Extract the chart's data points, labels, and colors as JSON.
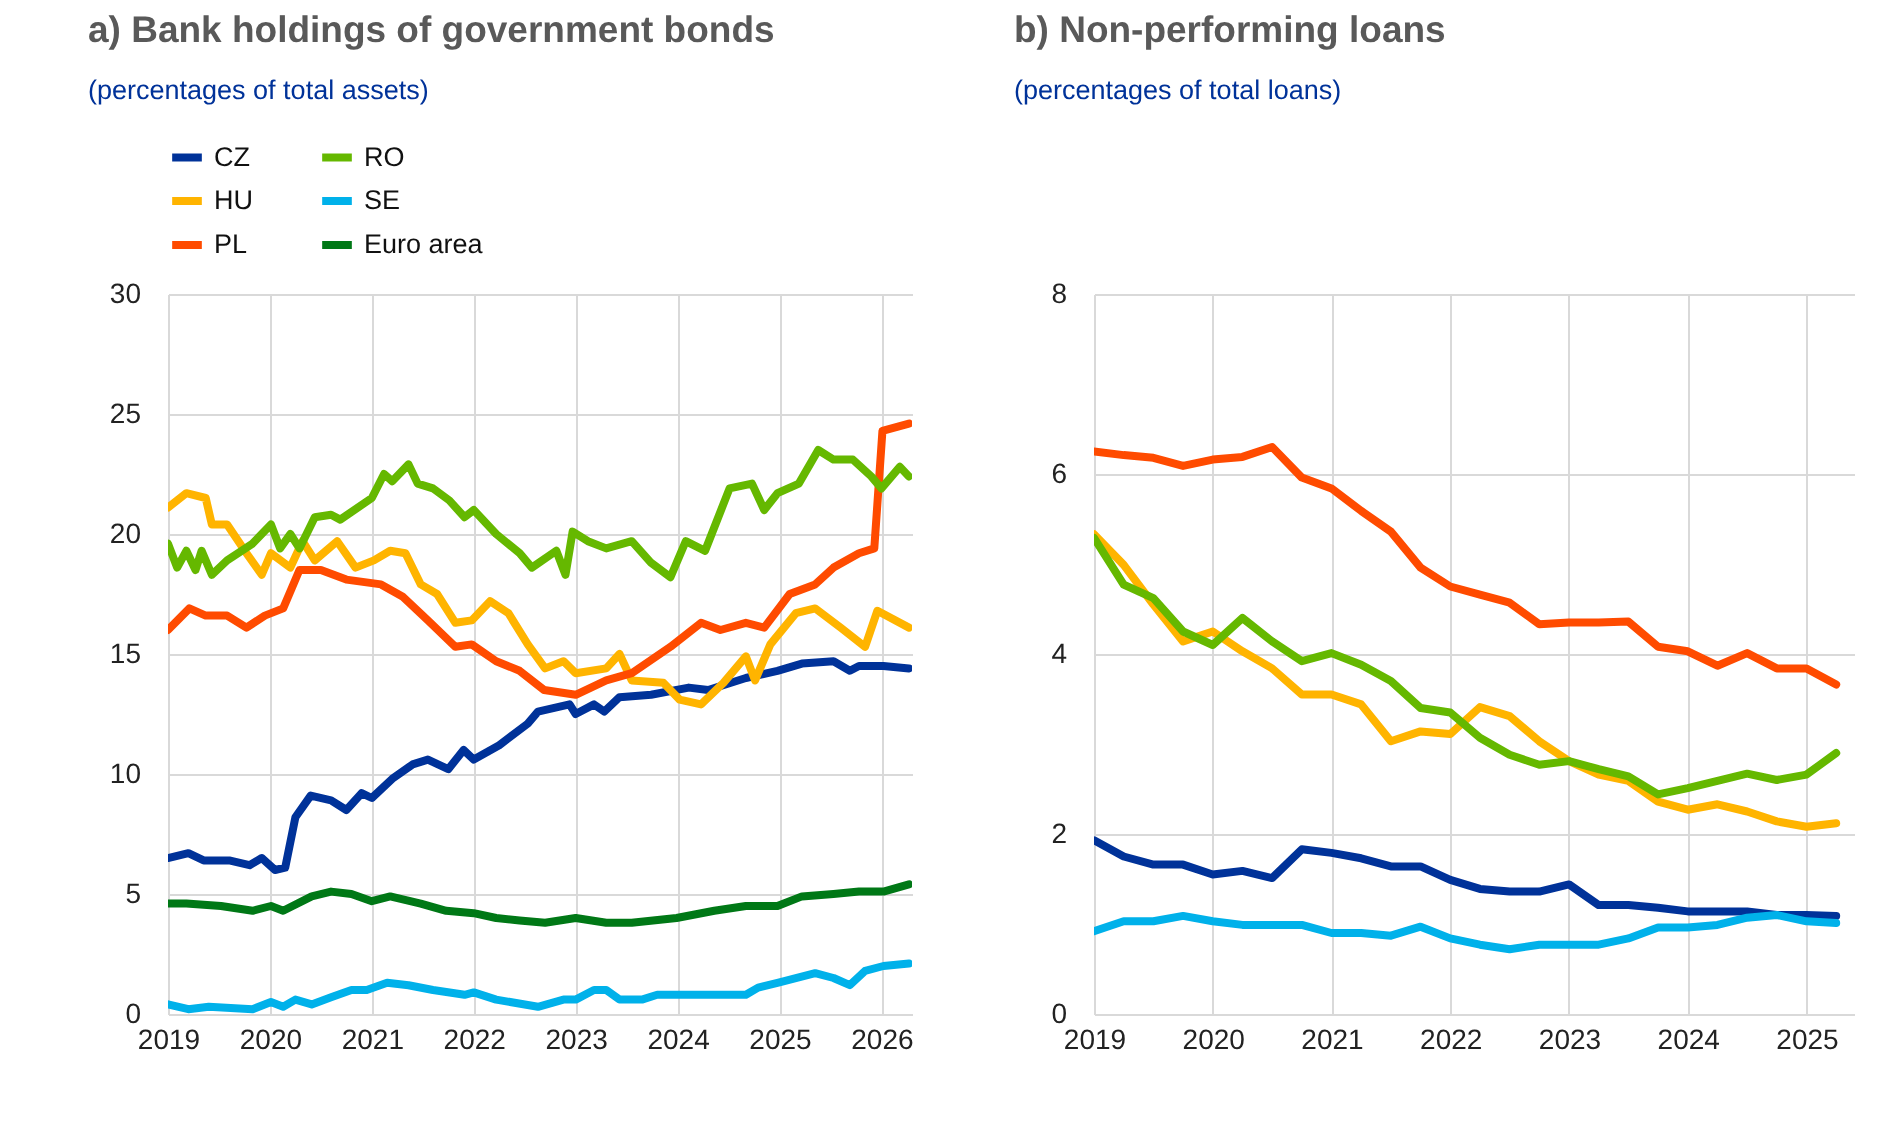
{
  "chart_data": [
    {
      "type": "line",
      "title": "a) Bank holdings of government bonds",
      "subtitle": "(percentages of total assets)",
      "xlim": [
        2019,
        2026.3
      ],
      "xticks": [
        2019,
        2020,
        2021,
        2022,
        2023,
        2024,
        2025,
        2026
      ],
      "ylim": [
        0,
        30
      ],
      "yticks": [
        0,
        5,
        10,
        15,
        20,
        25,
        30
      ],
      "grid": true,
      "legend": "top left",
      "line_style": "solid",
      "series": [
        {
          "name": "CZ",
          "color": "#003299",
          "x": [
            2019.0,
            2019.2,
            2019.35,
            2019.6,
            2019.8,
            2019.92,
            2020.05,
            2020.15,
            2020.25,
            2020.4,
            2020.6,
            2020.75,
            2020.9,
            2021.0,
            2021.2,
            2021.4,
            2021.55,
            2021.75,
            2021.9,
            2022.0,
            2022.25,
            2022.53,
            2022.63,
            2022.94,
            2023.0,
            2023.18,
            2023.28,
            2023.43,
            2023.74,
            2024.11,
            2024.3,
            2024.67,
            2024.98,
            2025.22,
            2025.53,
            2025.69,
            2025.78,
            2026.02,
            2026.27
          ],
          "values": [
            6.5,
            6.7,
            6.4,
            6.4,
            6.2,
            6.5,
            6.0,
            6.1,
            8.2,
            9.1,
            8.9,
            8.5,
            9.2,
            9.0,
            9.8,
            10.4,
            10.6,
            10.2,
            11.0,
            10.6,
            11.2,
            12.1,
            12.6,
            12.9,
            12.5,
            12.9,
            12.6,
            13.2,
            13.3,
            13.6,
            13.5,
            14.0,
            14.3,
            14.6,
            14.7,
            14.3,
            14.5,
            14.5,
            14.4
          ]
        },
        {
          "name": "HU",
          "color": "#ffb400",
          "x": [
            2019.0,
            2019.18,
            2019.37,
            2019.43,
            2019.58,
            2019.77,
            2019.92,
            2020.01,
            2020.2,
            2020.32,
            2020.44,
            2020.66,
            2020.84,
            2021.02,
            2021.18,
            2021.33,
            2021.48,
            2021.64,
            2021.82,
            2021.98,
            2022.16,
            2022.34,
            2022.53,
            2022.7,
            2022.88,
            2023.0,
            2023.3,
            2023.43,
            2023.55,
            2023.86,
            2024.02,
            2024.23,
            2024.45,
            2024.67,
            2024.76,
            2024.91,
            2025.16,
            2025.35,
            2025.6,
            2025.84,
            2025.96,
            2026.27
          ],
          "values": [
            21.1,
            21.7,
            21.5,
            20.4,
            20.4,
            19.2,
            18.3,
            19.2,
            18.6,
            19.7,
            18.9,
            19.7,
            18.6,
            18.9,
            19.3,
            19.2,
            17.9,
            17.5,
            16.3,
            16.4,
            17.2,
            16.7,
            15.4,
            14.4,
            14.7,
            14.2,
            14.4,
            15.0,
            13.9,
            13.8,
            13.1,
            12.9,
            13.8,
            14.9,
            13.9,
            15.4,
            16.7,
            16.9,
            16.1,
            15.3,
            16.8,
            16.1
          ]
        },
        {
          "name": "PL",
          "color": "#ff4b00",
          "x": [
            2019.0,
            2019.21,
            2019.37,
            2019.58,
            2019.77,
            2019.95,
            2020.13,
            2020.29,
            2020.5,
            2020.75,
            2021.09,
            2021.3,
            2021.55,
            2021.82,
            2021.98,
            2022.22,
            2022.45,
            2022.69,
            2023.0,
            2023.3,
            2023.55,
            2023.93,
            2024.23,
            2024.42,
            2024.67,
            2024.85,
            2025.1,
            2025.35,
            2025.53,
            2025.78,
            2025.93,
            2026.01,
            2026.27
          ],
          "values": [
            16.0,
            16.9,
            16.6,
            16.6,
            16.1,
            16.6,
            16.9,
            18.5,
            18.5,
            18.1,
            17.9,
            17.4,
            16.4,
            15.3,
            15.4,
            14.7,
            14.3,
            13.5,
            13.3,
            13.9,
            14.2,
            15.3,
            16.3,
            16.0,
            16.3,
            16.1,
            17.5,
            17.9,
            18.6,
            19.2,
            19.4,
            24.3,
            24.6
          ]
        },
        {
          "name": "RO",
          "color": "#65b800",
          "x": [
            2019.0,
            2019.09,
            2019.18,
            2019.27,
            2019.33,
            2019.43,
            2019.58,
            2019.83,
            2020.01,
            2020.1,
            2020.2,
            2020.29,
            2020.44,
            2020.6,
            2020.69,
            2021.0,
            2021.12,
            2021.2,
            2021.36,
            2021.45,
            2021.6,
            2021.76,
            2021.91,
            2022.0,
            2022.22,
            2022.45,
            2022.57,
            2022.81,
            2022.9,
            2022.97,
            2023.12,
            2023.3,
            2023.55,
            2023.74,
            2023.93,
            2024.08,
            2024.27,
            2024.51,
            2024.73,
            2024.85,
            2024.98,
            2025.19,
            2025.38,
            2025.53,
            2025.72,
            2025.9,
            2026.0,
            2026.18,
            2026.27
          ],
          "values": [
            19.6,
            18.6,
            19.3,
            18.5,
            19.3,
            18.3,
            18.9,
            19.6,
            20.4,
            19.4,
            20.0,
            19.4,
            20.7,
            20.8,
            20.6,
            21.5,
            22.5,
            22.2,
            22.9,
            22.1,
            21.9,
            21.4,
            20.7,
            21.0,
            20.0,
            19.2,
            18.6,
            19.3,
            18.3,
            20.1,
            19.7,
            19.4,
            19.7,
            18.8,
            18.2,
            19.7,
            19.3,
            21.9,
            22.1,
            21.0,
            21.7,
            22.1,
            23.5,
            23.1,
            23.1,
            22.4,
            21.9,
            22.8,
            22.4
          ]
        },
        {
          "name": "SE",
          "color": "#00b1ea",
          "x": [
            2019.0,
            2019.2,
            2019.4,
            2019.83,
            2020.01,
            2020.13,
            2020.25,
            2020.41,
            2020.6,
            2020.8,
            2020.95,
            2021.15,
            2021.36,
            2021.6,
            2021.91,
            2022.0,
            2022.22,
            2022.63,
            2022.88,
            2023.0,
            2023.18,
            2023.3,
            2023.43,
            2023.65,
            2023.8,
            2024.1,
            2024.67,
            2024.79,
            2024.98,
            2025.35,
            2025.53,
            2025.69,
            2025.84,
            2026.02,
            2026.27
          ],
          "values": [
            0.4,
            0.2,
            0.3,
            0.2,
            0.5,
            0.3,
            0.6,
            0.4,
            0.7,
            1.0,
            1.0,
            1.3,
            1.2,
            1.0,
            0.8,
            0.9,
            0.6,
            0.3,
            0.6,
            0.6,
            1.0,
            1.0,
            0.6,
            0.6,
            0.8,
            0.8,
            0.8,
            1.1,
            1.3,
            1.7,
            1.5,
            1.2,
            1.8,
            2.0,
            2.1
          ]
        },
        {
          "name": "Euro area",
          "color": "#007816",
          "x": [
            2019.0,
            2019.18,
            2019.52,
            2019.83,
            2020.01,
            2020.13,
            2020.41,
            2020.6,
            2020.8,
            2021.0,
            2021.18,
            2021.48,
            2021.73,
            2022.0,
            2022.22,
            2022.45,
            2022.7,
            2023.0,
            2023.3,
            2023.55,
            2023.99,
            2024.36,
            2024.67,
            2024.98,
            2025.22,
            2025.53,
            2025.78,
            2026.02,
            2026.27
          ],
          "values": [
            4.6,
            4.6,
            4.5,
            4.3,
            4.5,
            4.3,
            4.9,
            5.1,
            5.0,
            4.7,
            4.9,
            4.6,
            4.3,
            4.2,
            4.0,
            3.9,
            3.8,
            4.0,
            3.8,
            3.8,
            4.0,
            4.3,
            4.5,
            4.5,
            4.9,
            5.0,
            5.1,
            5.1,
            5.4
          ]
        }
      ]
    },
    {
      "type": "line",
      "title": "b) Non-performing loans",
      "subtitle": "(percentages of total loans)",
      "xlim": [
        2019,
        2025.4
      ],
      "xticks": [
        2019,
        2020,
        2021,
        2022,
        2023,
        2024,
        2025
      ],
      "ylim": [
        0,
        8
      ],
      "yticks": [
        0,
        2,
        4,
        6,
        8
      ],
      "grid": true,
      "legend": "top left",
      "line_style": "solid",
      "x": [
        2019.0,
        2019.25,
        2019.5,
        2019.75,
        2020.0,
        2020.25,
        2020.5,
        2020.75,
        2021.0,
        2021.25,
        2021.5,
        2021.75,
        2022.0,
        2022.25,
        2022.5,
        2022.75,
        2023.0,
        2023.25,
        2023.5,
        2023.75,
        2024.0,
        2024.25,
        2024.5,
        2024.75,
        2025.0,
        2025.25
      ],
      "series": [
        {
          "name": "CZ",
          "color": "#003299",
          "values": [
            1.93,
            1.75,
            1.66,
            1.66,
            1.55,
            1.59,
            1.51,
            1.83,
            1.79,
            1.73,
            1.64,
            1.64,
            1.49,
            1.39,
            1.36,
            1.36,
            1.44,
            1.21,
            1.21,
            1.18,
            1.14,
            1.14,
            1.14,
            1.1,
            1.1,
            1.09
          ]
        },
        {
          "name": "HU",
          "color": "#ffb400",
          "values": [
            5.33,
            4.99,
            4.55,
            4.14,
            4.25,
            4.03,
            3.84,
            3.55,
            3.55,
            3.44,
            3.03,
            3.14,
            3.11,
            3.41,
            3.31,
            3.03,
            2.81,
            2.66,
            2.59,
            2.36,
            2.27,
            2.33,
            2.25,
            2.14,
            2.08,
            2.12
          ]
        },
        {
          "name": "PL",
          "color": "#ff4b00",
          "values": [
            6.25,
            6.21,
            6.18,
            6.09,
            6.16,
            6.19,
            6.3,
            5.96,
            5.84,
            5.59,
            5.36,
            4.96,
            4.75,
            4.66,
            4.57,
            4.33,
            4.35,
            4.35,
            4.36,
            4.08,
            4.03,
            3.87,
            4.01,
            3.84,
            3.84,
            3.66
          ]
        },
        {
          "name": "RO",
          "color": "#65b800",
          "values": [
            5.29,
            4.77,
            4.62,
            4.25,
            4.1,
            4.4,
            4.14,
            3.92,
            4.01,
            3.88,
            3.7,
            3.4,
            3.35,
            3.07,
            2.88,
            2.77,
            2.81,
            2.72,
            2.64,
            2.44,
            2.51,
            2.59,
            2.67,
            2.6,
            2.66,
            2.9
          ]
        },
        {
          "name": "SE",
          "color": "#00b1ea",
          "values": [
            0.92,
            1.03,
            1.03,
            1.09,
            1.03,
            0.99,
            0.99,
            0.99,
            0.9,
            0.9,
            0.87,
            0.97,
            0.84,
            0.77,
            0.72,
            0.77,
            0.77,
            0.77,
            0.84,
            0.96,
            0.96,
            0.99,
            1.07,
            1.1,
            1.03,
            1.01
          ]
        }
      ]
    }
  ]
}
